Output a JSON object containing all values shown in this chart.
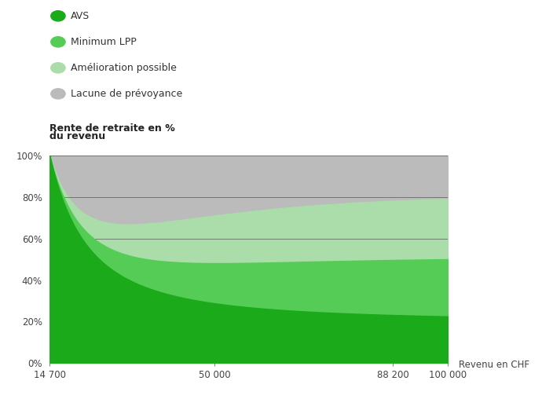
{
  "ylabel_line1": "Rente de retraite en %",
  "ylabel_line2": "du revenu",
  "xlabel": "Revenu en CHF",
  "x_ticks": [
    14700,
    50000,
    88200,
    100000
  ],
  "x_tick_labels": [
    "14 700",
    "50 000",
    "88 200",
    "100 000"
  ],
  "y_ticks": [
    0,
    20,
    40,
    60,
    80,
    100
  ],
  "y_tick_labels": [
    "0%",
    "20%",
    "40%",
    "60%",
    "80%",
    "100%"
  ],
  "xlim": [
    14700,
    100000
  ],
  "ylim": [
    0,
    100
  ],
  "color_avs": "#1aaa1a",
  "color_lpp_min": "#55cc55",
  "color_amelioration": "#aaddaa",
  "color_lacune": "#bbbbbb",
  "legend_labels": [
    "AVS",
    "Minimum LPP",
    "Amélioration possible",
    "Lacune de prévoyance"
  ],
  "background_color": "#ffffff",
  "grid_color": "#555555"
}
